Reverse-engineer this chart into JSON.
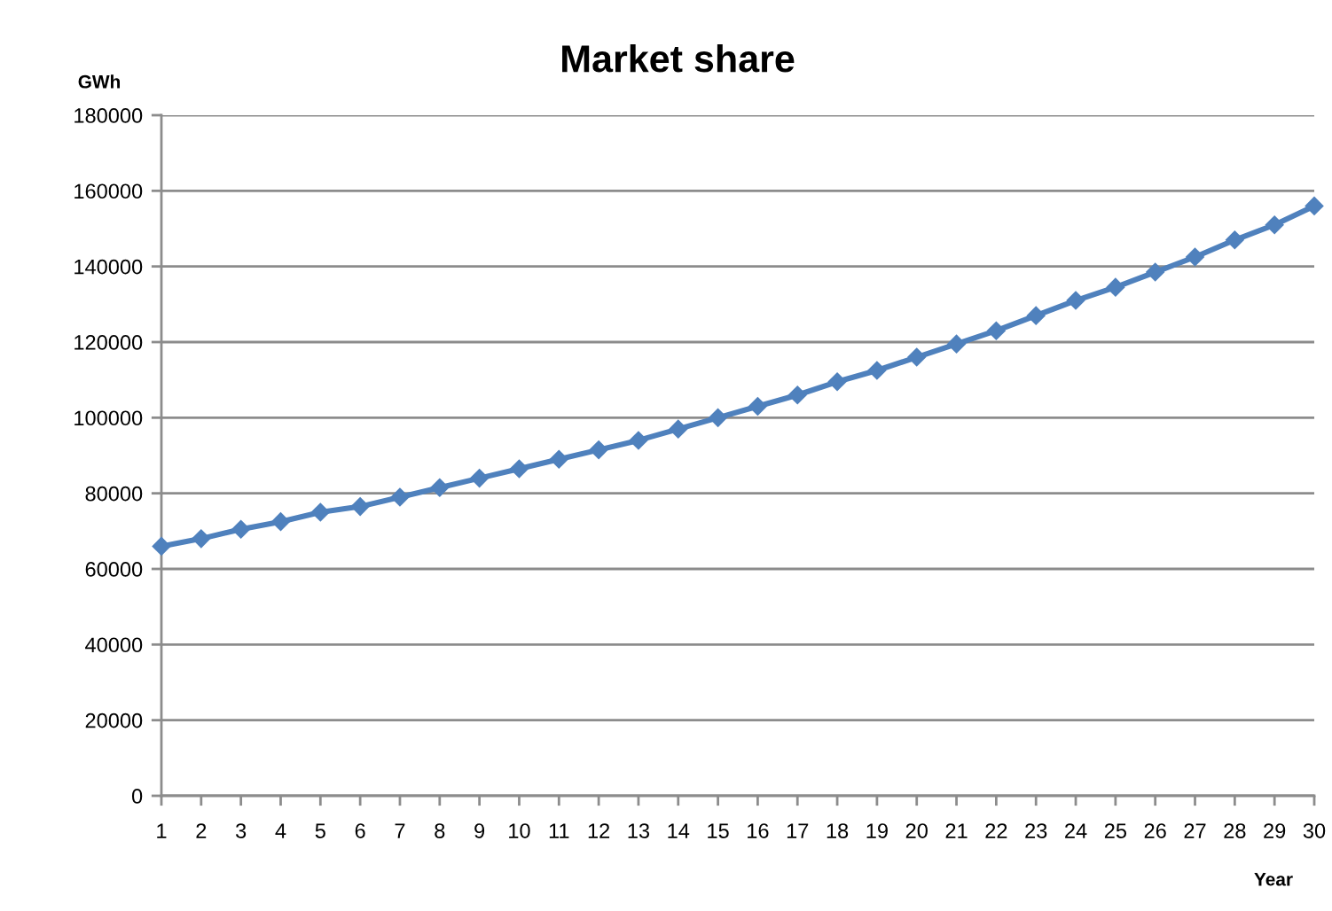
{
  "chart_data": {
    "type": "line",
    "title": "Market share",
    "xlabel": "Year",
    "ylabel": "GWh",
    "categories": [
      "1",
      "2",
      "3",
      "4",
      "5",
      "6",
      "7",
      "8",
      "9",
      "10",
      "11",
      "12",
      "13",
      "14",
      "15",
      "16",
      "17",
      "18",
      "19",
      "20",
      "21",
      "22",
      "23",
      "24",
      "25",
      "26",
      "27",
      "28",
      "29",
      "30"
    ],
    "series": [
      {
        "color": "#4f81bd",
        "values": [
          66000,
          68000,
          70500,
          72500,
          75000,
          76500,
          79000,
          81500,
          84000,
          86500,
          89000,
          91500,
          94000,
          97000,
          100000,
          103000,
          106000,
          109500,
          112500,
          116000,
          119500,
          123000,
          127000,
          131000,
          134500,
          138500,
          142500,
          147000,
          151000,
          156000
        ]
      }
    ],
    "ylim": [
      0,
      180000
    ],
    "yticks": [
      0,
      20000,
      40000,
      60000,
      80000,
      100000,
      120000,
      140000,
      160000,
      180000
    ],
    "grid": "y",
    "marker": "diamond",
    "line_style": "solid"
  }
}
